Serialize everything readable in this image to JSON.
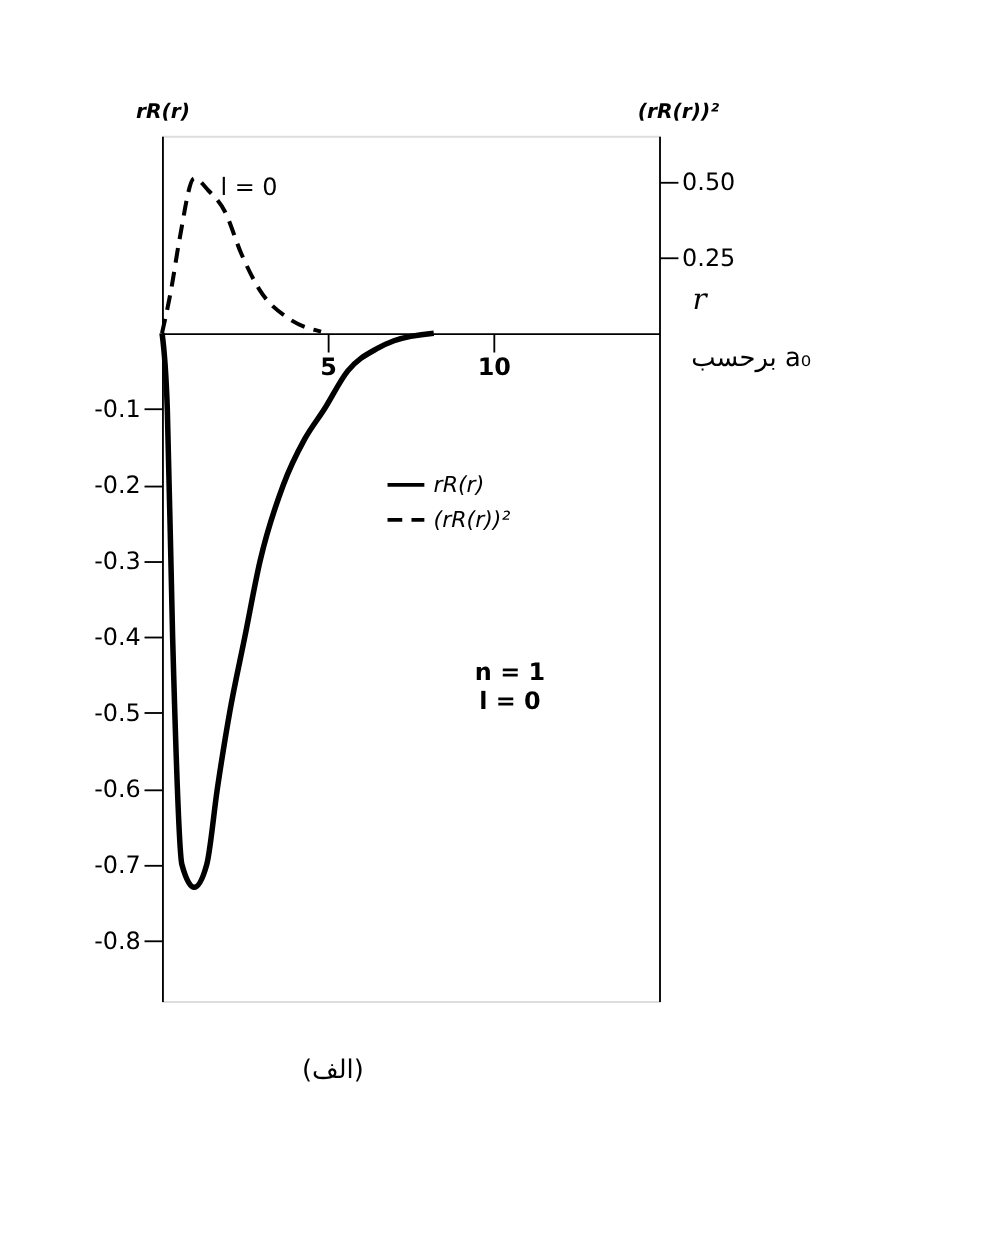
{
  "chart_data": {
    "type": "line",
    "xlabel": "r",
    "ylabel": "rR(r)",
    "y2label": "(rR(r))²",
    "xlim": [
      0,
      15
    ],
    "xticks": [
      5,
      10
    ],
    "ylim": [
      -0.88,
      0.26
    ],
    "yticks": [
      -0.8,
      -0.7,
      -0.6,
      -0.5,
      -0.4,
      -0.3,
      -0.2,
      -0.1
    ],
    "y2lim": [
      -2.2,
      0.65
    ],
    "y2ticks": [
      0.25,
      {
        "value": 0.5,
        "label": "0.50"
      }
    ],
    "grid": false,
    "legend": "right",
    "marker": "none",
    "series": [
      {
        "name": "rR(r)",
        "color": "#000000",
        "line_style": "solid",
        "x": [
          0,
          0.16,
          0.32,
          0.6,
          0.97,
          1.35,
          1.67,
          2.04,
          2.5,
          2.96,
          3.66,
          4.3,
          4.9,
          5.6,
          6.5,
          7.0,
          8.2
        ],
        "values": [
          0,
          -0.1,
          -0.4,
          -0.7,
          -0.73,
          -0.7,
          -0.6,
          -0.5,
          -0.4,
          -0.3,
          -0.2,
          -0.14,
          -0.1,
          -0.05,
          -0.02,
          -0.01,
          0
        ]
      },
      {
        "name": "(rR(r))²",
        "color": "#000000",
        "line_style": "dashed",
        "axis": "y2",
        "x": [
          0,
          0.27,
          0.53,
          0.97,
          1.4,
          1.9,
          2.4,
          2.96,
          3.8,
          4.8
        ],
        "values": [
          0,
          0.14,
          0.31,
          0.51,
          0.47,
          0.4,
          0.26,
          0.14,
          0.05,
          0.005
        ]
      }
    ],
    "annotations": [
      "l = 0",
      "برحسب a₀",
      "n = 1",
      "l = 0",
      "(الف)"
    ]
  }
}
